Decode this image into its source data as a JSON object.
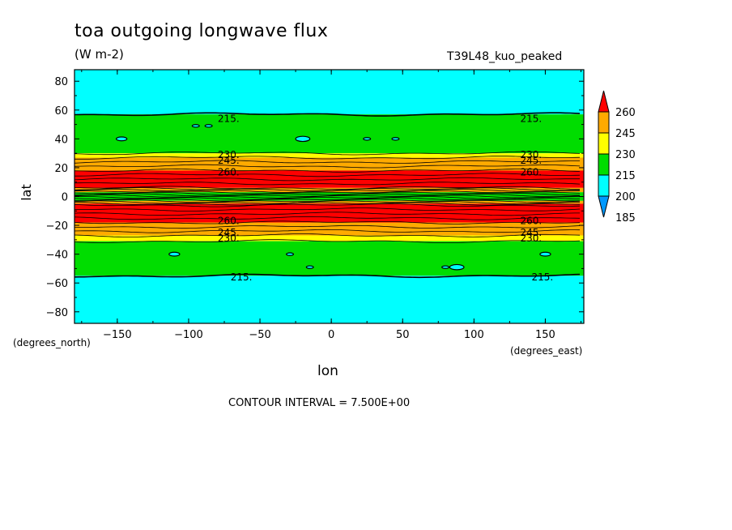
{
  "chart_data": {
    "type": "heatmap",
    "title": "toa outgoing longwave flux",
    "subtitle": "(W m-2)",
    "run_label": "T39L48_kuo_peaked",
    "xlabel": "lon",
    "ylabel": "lat",
    "x_units": "(degrees_east)",
    "y_units": "(degrees_north)",
    "xlim": [
      -180,
      177
    ],
    "ylim": [
      -88,
      88
    ],
    "x_ticks": [
      -150,
      -100,
      -50,
      0,
      50,
      100,
      150
    ],
    "y_ticks": [
      80,
      60,
      40,
      20,
      0,
      -20,
      -40,
      -60,
      -80
    ],
    "contour_interval_text": "CONTOUR INTERVAL = 7.500E+00",
    "contour_interval": 7.5,
    "colorbar": {
      "levels": [
        185,
        200,
        215,
        230,
        245,
        260
      ],
      "labels": [
        "260",
        "245",
        "230",
        "215",
        "200",
        "185"
      ],
      "colors": [
        "#0099ff",
        "#00ffff",
        "#00dd00",
        "#ffff00",
        "#ffaa00",
        "#ff0000"
      ],
      "extend": "both"
    },
    "zonal_bands": [
      {
        "lat_from": 88,
        "lat_to": 57,
        "value": 200,
        "color": "#00ffff"
      },
      {
        "lat_from": 57,
        "lat_to": 30,
        "value": 215,
        "color": "#00dd00"
      },
      {
        "lat_from": 30,
        "lat_to": 27,
        "value": 230,
        "color": "#ffff00"
      },
      {
        "lat_from": 27,
        "lat_to": 18,
        "value": 245,
        "color": "#ffaa00"
      },
      {
        "lat_from": 18,
        "lat_to": 6,
        "value": 260,
        "color": "#ff0000"
      },
      {
        "lat_from": 6,
        "lat_to": 3,
        "value": 245,
        "color": "#ffaa00"
      },
      {
        "lat_from": 3,
        "lat_to": -3,
        "value": 215,
        "color": "#00dd00"
      },
      {
        "lat_from": -3,
        "lat_to": -5,
        "value": 245,
        "color": "#ffaa00"
      },
      {
        "lat_from": -5,
        "lat_to": -18,
        "value": 260,
        "color": "#ff0000"
      },
      {
        "lat_from": -18,
        "lat_to": -27,
        "value": 245,
        "color": "#ffaa00"
      },
      {
        "lat_from": -27,
        "lat_to": -31,
        "value": 230,
        "color": "#ffff00"
      },
      {
        "lat_from": -31,
        "lat_to": -55,
        "value": 215,
        "color": "#00dd00"
      },
      {
        "lat_from": -55,
        "lat_to": -88,
        "value": 200,
        "color": "#00ffff"
      }
    ],
    "contour_lines_lat": [
      57,
      30,
      27,
      24,
      21,
      18,
      15,
      12,
      9,
      6,
      5,
      4,
      3,
      2,
      1,
      0,
      -1,
      -2,
      -3,
      -4,
      -5,
      -6,
      -9,
      -12,
      -15,
      -18,
      -21,
      -24,
      -27,
      -31,
      -55
    ],
    "contour_labels": [
      {
        "text": "215.",
        "lon": -72,
        "lat": 54
      },
      {
        "text": "215.",
        "lon": 140,
        "lat": 54
      },
      {
        "text": "230.",
        "lon": -72,
        "lat": 29
      },
      {
        "text": "245.",
        "lon": -72,
        "lat": 25
      },
      {
        "text": "260.",
        "lon": -72,
        "lat": 17
      },
      {
        "text": "230.",
        "lon": 140,
        "lat": 29
      },
      {
        "text": "245.",
        "lon": 140,
        "lat": 25
      },
      {
        "text": "260.",
        "lon": 140,
        "lat": 17
      },
      {
        "text": "260.",
        "lon": -72,
        "lat": -17
      },
      {
        "text": "245.",
        "lon": -72,
        "lat": -25
      },
      {
        "text": "230.",
        "lon": -72,
        "lat": -29
      },
      {
        "text": "260.",
        "lon": 140,
        "lat": -17
      },
      {
        "text": "245.",
        "lon": 140,
        "lat": -25
      },
      {
        "text": "230.",
        "lon": 140,
        "lat": -29
      },
      {
        "text": "215.",
        "lon": -63,
        "lat": -56
      },
      {
        "text": "215.",
        "lon": 148,
        "lat": -56
      }
    ],
    "blobs": [
      {
        "lon": -147,
        "lat": 40,
        "r": 3
      },
      {
        "lon": -95,
        "lat": 49,
        "r": 2
      },
      {
        "lon": -86,
        "lat": 49,
        "r": 2
      },
      {
        "lon": -20,
        "lat": 40,
        "r": 4
      },
      {
        "lon": 25,
        "lat": 40,
        "r": 2
      },
      {
        "lon": 45,
        "lat": 40,
        "r": 2
      },
      {
        "lon": -110,
        "lat": -40,
        "r": 3
      },
      {
        "lon": -29,
        "lat": -40,
        "r": 2
      },
      {
        "lon": -15,
        "lat": -49,
        "r": 2
      },
      {
        "lon": 80,
        "lat": -49,
        "r": 2
      },
      {
        "lon": 88,
        "lat": -49,
        "r": 4
      },
      {
        "lon": 150,
        "lat": -40,
        "r": 3
      }
    ]
  }
}
